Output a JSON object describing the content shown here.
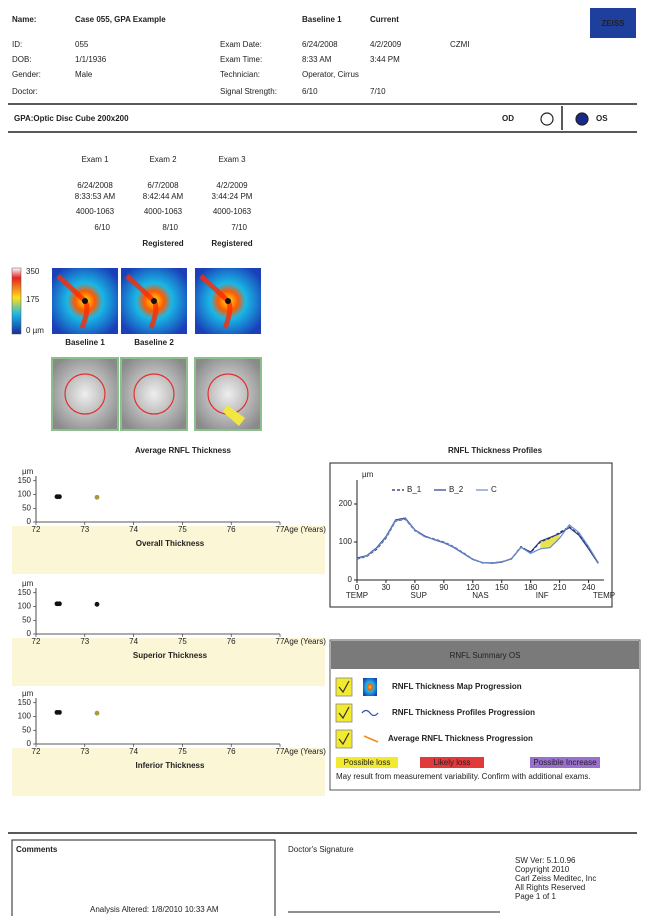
{
  "header": {
    "name_label": "Name:",
    "name": "Case 055, GPA Example",
    "col_headers": [
      "Baseline 1",
      "Current"
    ],
    "logo": "ZEISS",
    "left": [
      {
        "label": "ID:",
        "value": "055"
      },
      {
        "label": "DOB:",
        "value": "1/1/1936"
      },
      {
        "label": "Gender:",
        "value": "Male"
      },
      {
        "label": "Doctor:"
      }
    ],
    "right": [
      {
        "label": "Exam Date:",
        "values": [
          "6/24/2008",
          "4/2/2009"
        ]
      },
      {
        "label": "Exam Time:",
        "values": [
          "8:33 AM",
          "3:44 PM"
        ]
      },
      {
        "label": "Technician:",
        "values": [
          "Operator, Cirrus"
        ]
      },
      {
        "label": "Signal Strength:",
        "values": [
          "6/10",
          "7/10"
        ]
      }
    ],
    "site": "CZMI"
  },
  "title_bar": {
    "title": "GPA:Optic Disc Cube 200x200",
    "eyes": [
      "OD",
      "OS"
    ],
    "selected": 1
  },
  "exams": [
    {
      "label": "Exam 1",
      "date": "6/24/2008",
      "time": "8:33:53 AM",
      "serial": "4000-1063",
      "signal": "6/10"
    },
    {
      "label": "Exam 2",
      "date": "6/7/2008",
      "time": "8:42:44 AM",
      "serial": "4000-1063",
      "signal": "8/10",
      "status": "Registered"
    },
    {
      "label": "Exam 3",
      "date": "4/2/2009",
      "time": "3:44:24 PM",
      "serial": "4000-1063",
      "signal": "7/10",
      "status": "Registered"
    }
  ],
  "color_scale": {
    "labels": [
      "350",
      "175",
      "0 µm"
    ]
  },
  "baselines": [
    "Baseline 1",
    "Baseline 2"
  ],
  "trend_section": {
    "title": "Average RNFL Thickness",
    "x_label": "Age (Years)",
    "y_unit": "µm",
    "xlim": [
      72,
      77
    ],
    "xticks": [
      72,
      73,
      74,
      75,
      76,
      77
    ],
    "ylim": [
      0,
      160
    ],
    "yticks": [
      0,
      50,
      100,
      150
    ],
    "charts": [
      {
        "title": "Overall Thickness",
        "x": [
          72.48,
          72.43,
          73.25
        ],
        "values": [
          92,
          92,
          90
        ],
        "colors": [
          "#111111",
          "#111111",
          "#a89a3a"
        ]
      },
      {
        "title": "Superior Thickness",
        "x": [
          72.48,
          72.43,
          73.25
        ],
        "values": [
          110,
          110,
          108
        ],
        "colors": [
          "#111111",
          "#111111",
          "#111111"
        ]
      },
      {
        "title": "Inferior Thickness",
        "x": [
          72.48,
          72.43,
          73.25
        ],
        "values": [
          115,
          115,
          112
        ],
        "colors": [
          "#111111",
          "#111111",
          "#a89a3a"
        ]
      }
    ]
  },
  "profile_chart": {
    "type": "line",
    "title": "RNFL Thickness Profiles",
    "y_unit": "µm",
    "x": [
      0,
      10,
      20,
      30,
      40,
      50,
      60,
      70,
      80,
      90,
      100,
      110,
      120,
      130,
      140,
      150,
      160,
      170,
      180,
      190,
      200,
      210,
      220,
      230,
      240,
      250
    ],
    "series": [
      {
        "name": "B_1",
        "color": "#1b2a6b",
        "dash": true,
        "values": [
          55,
          62,
          80,
          110,
          155,
          160,
          130,
          115,
          108,
          100,
          88,
          72,
          55,
          45,
          45,
          48,
          55,
          88,
          72,
          100,
          110,
          125,
          140,
          120,
          85,
          45
        ]
      },
      {
        "name": "B_2",
        "color": "#2b3a8a",
        "values": [
          58,
          64,
          84,
          114,
          158,
          163,
          132,
          116,
          106,
          98,
          86,
          70,
          54,
          46,
          44,
          47,
          56,
          86,
          74,
          102,
          112,
          122,
          138,
          118,
          82,
          44
        ]
      },
      {
        "name": "C",
        "color": "#6a8cc8",
        "values": [
          56,
          63,
          82,
          112,
          156,
          161,
          131,
          114,
          107,
          99,
          87,
          71,
          55,
          46,
          45,
          48,
          55,
          86,
          70,
          82,
          85,
          110,
          145,
          125,
          88,
          46
        ]
      }
    ],
    "xlim": [
      0,
      256
    ],
    "xticks": [
      0,
      30,
      60,
      90,
      120,
      150,
      180,
      210,
      240
    ],
    "ylim": [
      0,
      250
    ],
    "yticks": [
      0,
      100,
      200
    ],
    "sectors": [
      "TEMP",
      "SUP",
      "NAS",
      "INF",
      "TEMP"
    ],
    "highlight": {
      "from": 190,
      "to": 210,
      "color": "#e8e03a"
    }
  },
  "summary": {
    "title": "RNFL Summary OS",
    "items": [
      "RNFL Thickness Map Progression",
      "RNFL Thickness Profiles Progression",
      "Average RNFL Thickness Progression"
    ],
    "legend": [
      {
        "label": "Possible loss",
        "color": "#f2ea2e"
      },
      {
        "label": "Likely loss",
        "color": "#e23a3a"
      },
      {
        "label": "Possible Increase",
        "color": "#9a6fd0"
      }
    ],
    "note": "May result from measurement variability. Confirm with additional exams."
  },
  "footer": {
    "comments_label": "Comments",
    "analysis": "Analysis Altered: 1/8/2010 10:33 AM",
    "signature_label": "Doctor's Signature",
    "info": [
      "SW Ver: 5.1.0.96",
      "Copyright 2010",
      "Carl Zeiss Meditec, Inc",
      "All Rights Reserved",
      "Page 1 of 1"
    ]
  }
}
